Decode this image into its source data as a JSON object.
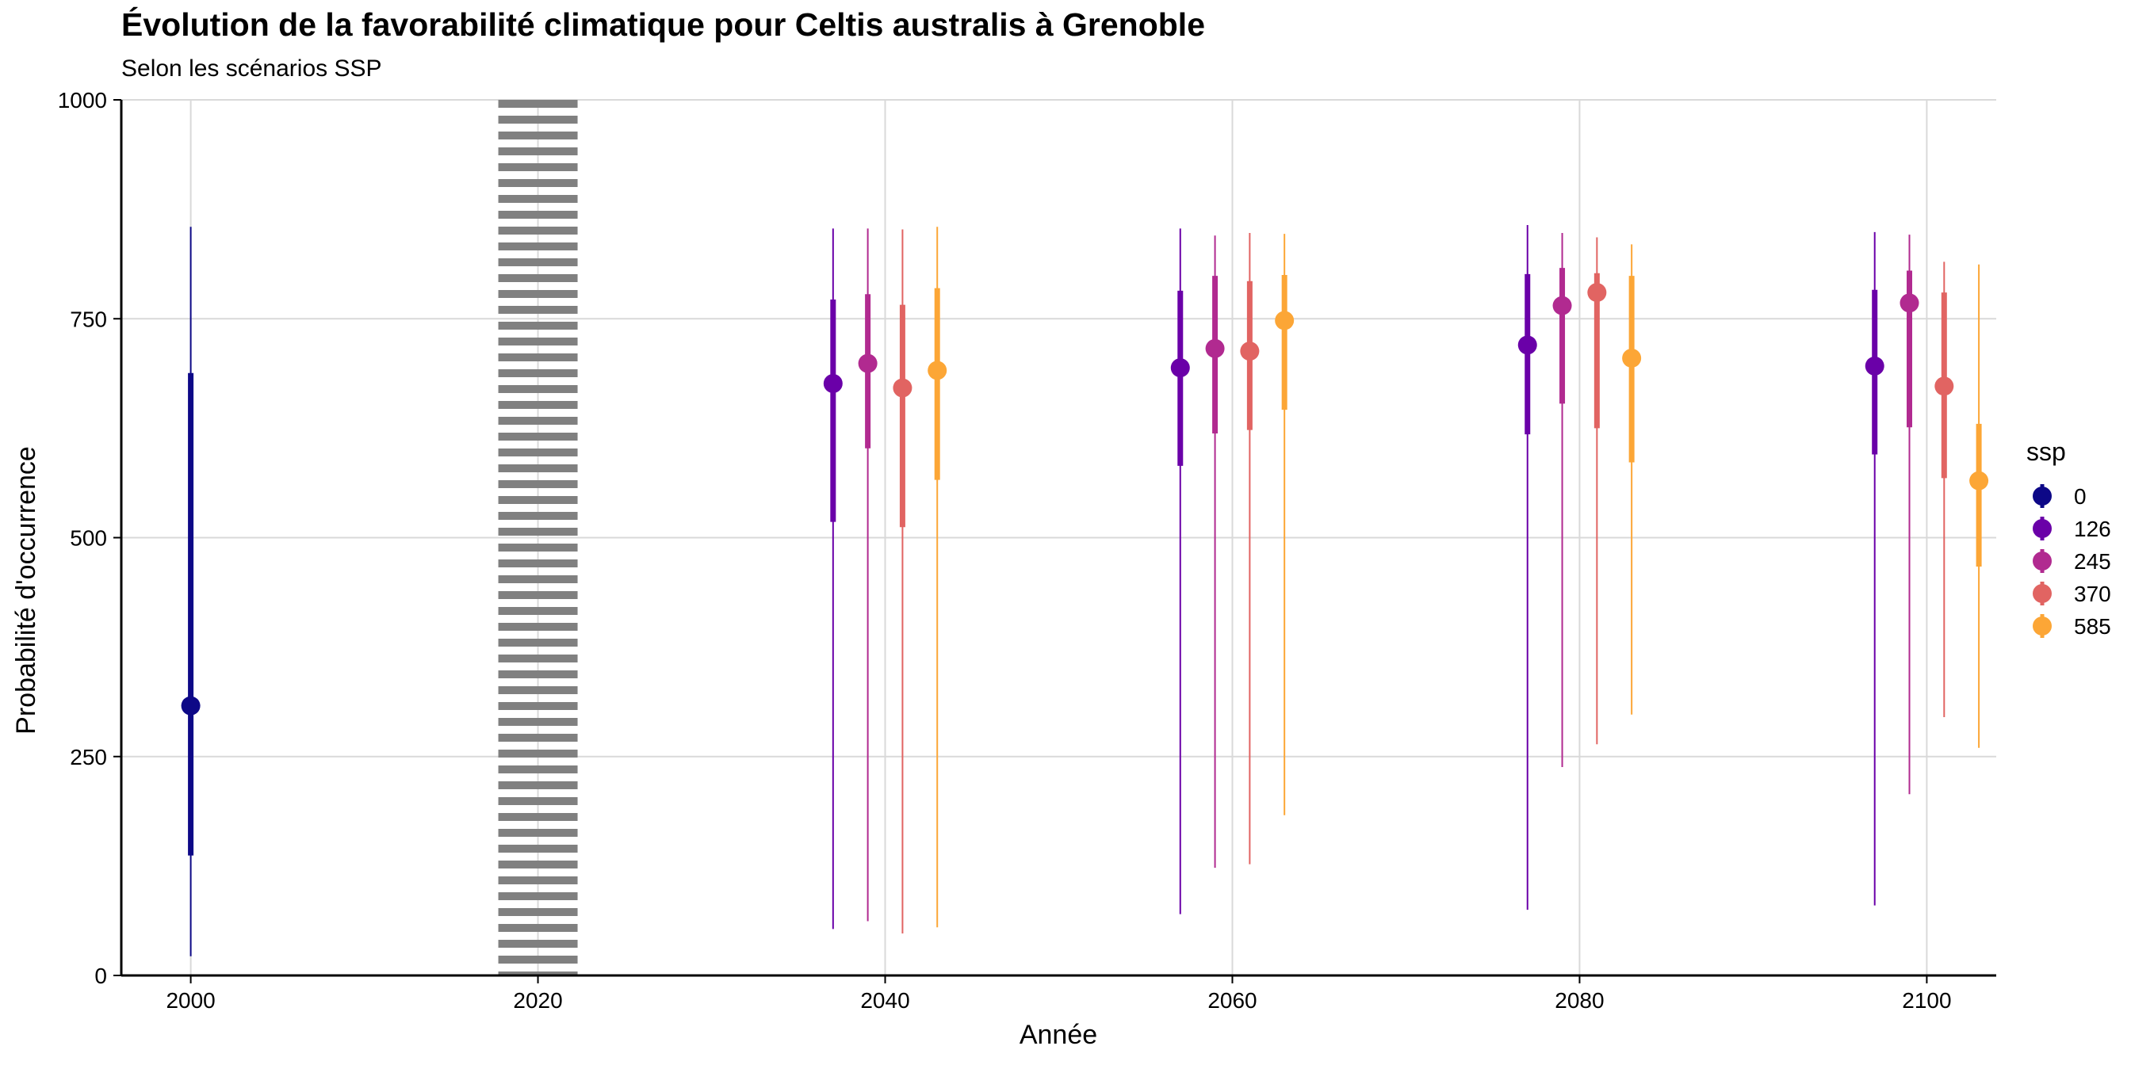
{
  "chart_data": {
    "type": "errorbar-point",
    "title": "Évolution de la favorabilité climatique pour Celtis australis à Grenoble",
    "subtitle": "Selon les scénarios SSP",
    "xlabel": "Année",
    "ylabel": "Probabilité d'occurrence",
    "xlim": [
      1996,
      2104
    ],
    "ylim": [
      0,
      1000
    ],
    "x_ticks": [
      "2000",
      "2020",
      "2040",
      "2060",
      "2080",
      "2100"
    ],
    "y_ticks": [
      "0",
      "250",
      "500",
      "750",
      "1000"
    ],
    "grid": true,
    "reference_line": {
      "x": 2020,
      "style": "dotted",
      "color": "#808080"
    },
    "legend": {
      "title": "ssp",
      "position": "right"
    },
    "series": [
      {
        "name": "0",
        "color": "#0d0887",
        "points": [
          {
            "x": 2000,
            "y": 308,
            "inner": [
              137,
              688
            ],
            "outer": [
              22,
              855
            ]
          }
        ]
      },
      {
        "name": "126",
        "color": "#6a00a8",
        "points": [
          {
            "x": 2037,
            "y": 676,
            "inner": [
              518,
              772
            ],
            "outer": [
              53,
              853
            ]
          },
          {
            "x": 2057,
            "y": 694,
            "inner": [
              582,
              782
            ],
            "outer": [
              70,
              853
            ]
          },
          {
            "x": 2077,
            "y": 720,
            "inner": [
              618,
              801
            ],
            "outer": [
              75,
              857
            ]
          },
          {
            "x": 2097,
            "y": 696,
            "inner": [
              595,
              783
            ],
            "outer": [
              80,
              849
            ]
          }
        ]
      },
      {
        "name": "245",
        "color": "#b12a90",
        "points": [
          {
            "x": 2039,
            "y": 699,
            "inner": [
              602,
              778
            ],
            "outer": [
              62,
              853
            ]
          },
          {
            "x": 2059,
            "y": 716,
            "inner": [
              619,
              799
            ],
            "outer": [
              123,
              845
            ]
          },
          {
            "x": 2079,
            "y": 765,
            "inner": [
              653,
              808
            ],
            "outer": [
              238,
              848
            ]
          },
          {
            "x": 2099,
            "y": 768,
            "inner": [
              626,
              805
            ],
            "outer": [
              207,
              846
            ]
          }
        ]
      },
      {
        "name": "370",
        "color": "#e16462",
        "points": [
          {
            "x": 2041,
            "y": 671,
            "inner": [
              512,
              766
            ],
            "outer": [
              48,
              852
            ]
          },
          {
            "x": 2061,
            "y": 713,
            "inner": [
              623,
              793
            ],
            "outer": [
              127,
              848
            ]
          },
          {
            "x": 2081,
            "y": 780,
            "inner": [
              625,
              802
            ],
            "outer": [
              264,
              843
            ]
          },
          {
            "x": 2101,
            "y": 673,
            "inner": [
              568,
              780
            ],
            "outer": [
              295,
              815
            ]
          }
        ]
      },
      {
        "name": "585",
        "color": "#fca636",
        "points": [
          {
            "x": 2043,
            "y": 691,
            "inner": [
              566,
              785
            ],
            "outer": [
              55,
              855
            ]
          },
          {
            "x": 2063,
            "y": 748,
            "inner": [
              646,
              800
            ],
            "outer": [
              183,
              847
            ]
          },
          {
            "x": 2083,
            "y": 705,
            "inner": [
              586,
              799
            ],
            "outer": [
              298,
              835
            ]
          },
          {
            "x": 2103,
            "y": 565,
            "inner": [
              467,
              630
            ],
            "outer": [
              260,
              812
            ]
          }
        ]
      }
    ]
  }
}
